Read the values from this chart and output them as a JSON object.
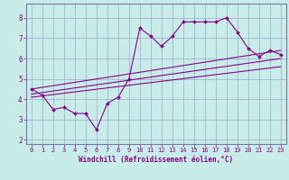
{
  "xlabel": "Windchill (Refroidissement éolien,°C)",
  "xlim": [
    -0.5,
    23.5
  ],
  "ylim": [
    1.8,
    8.7
  ],
  "xticks": [
    0,
    1,
    2,
    3,
    4,
    5,
    6,
    7,
    8,
    9,
    10,
    11,
    12,
    13,
    14,
    15,
    16,
    17,
    18,
    19,
    20,
    21,
    22,
    23
  ],
  "yticks": [
    2,
    3,
    4,
    5,
    6,
    7,
    8
  ],
  "bg_color": "#c8ece8",
  "line_color": "#880088",
  "grid_color": "#99aacc",
  "border_color": "#7777aa",
  "series": {
    "jagged": {
      "x": [
        0,
        1,
        2,
        3,
        4,
        5,
        6,
        7,
        8,
        9,
        10,
        11,
        12,
        13,
        14,
        15,
        16,
        17,
        18,
        19,
        20,
        21,
        22,
        23
      ],
      "y": [
        4.5,
        4.2,
        3.5,
        3.6,
        3.3,
        3.3,
        2.5,
        3.8,
        4.1,
        5.0,
        7.5,
        7.1,
        6.6,
        7.1,
        7.8,
        7.8,
        7.8,
        7.8,
        8.0,
        7.3,
        6.5,
        6.1,
        6.4,
        6.2
      ]
    },
    "upper_line": {
      "x": [
        0,
        23
      ],
      "y": [
        4.5,
        6.4
      ]
    },
    "mid_line": {
      "x": [
        0,
        23
      ],
      "y": [
        4.25,
        6.0
      ]
    },
    "lower_line": {
      "x": [
        0,
        23
      ],
      "y": [
        4.1,
        5.6
      ]
    }
  }
}
